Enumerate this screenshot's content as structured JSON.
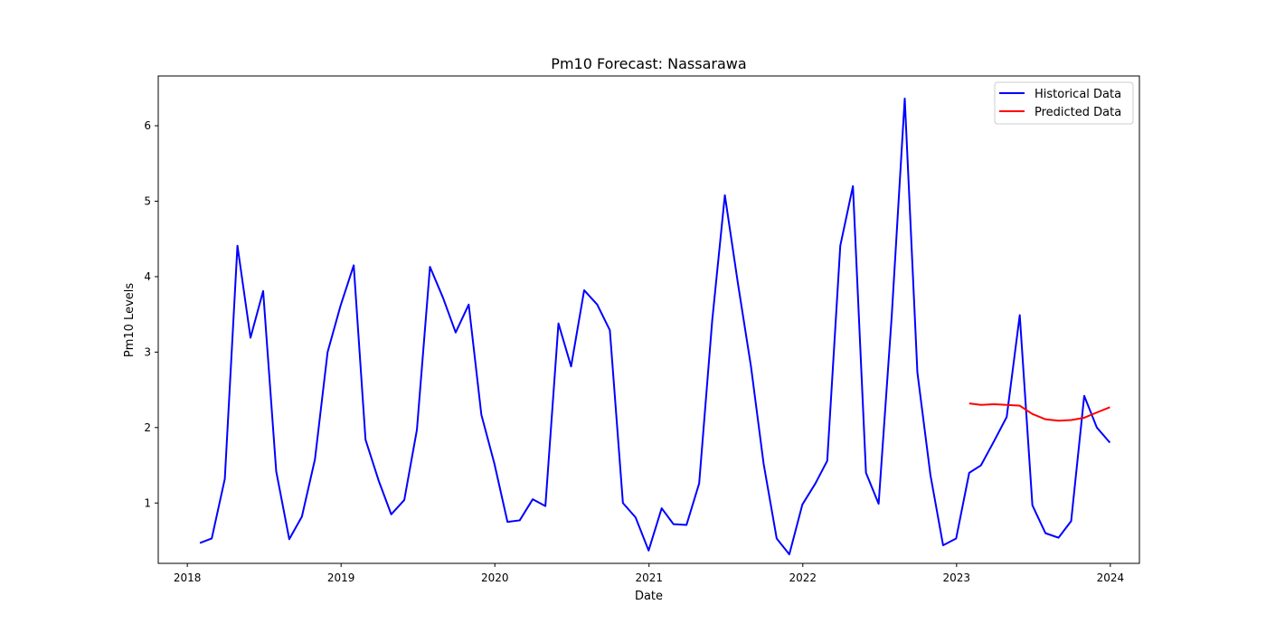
{
  "chart_data": {
    "type": "line",
    "title": "Pm10 Forecast: Nassarawa",
    "xlabel": "Date",
    "ylabel": "Pm10 Levels",
    "xlim": [
      "2017-10-24",
      "2024-03-10"
    ],
    "ylim": [
      0.2,
      6.66
    ],
    "x_ticks": [
      {
        "label": "2018",
        "date": "2018-01-01"
      },
      {
        "label": "2019",
        "date": "2019-01-01"
      },
      {
        "label": "2020",
        "date": "2020-01-01"
      },
      {
        "label": "2021",
        "date": "2021-01-01"
      },
      {
        "label": "2022",
        "date": "2022-01-01"
      },
      {
        "label": "2023",
        "date": "2023-01-01"
      },
      {
        "label": "2024",
        "date": "2024-01-01"
      }
    ],
    "y_ticks": [
      1,
      2,
      3,
      4,
      5,
      6
    ],
    "grid": false,
    "legend_position": "top-right",
    "series": [
      {
        "name": "Historical Data",
        "color": "#0000ff",
        "x": [
          "2018-01-31",
          "2018-02-28",
          "2018-03-31",
          "2018-04-30",
          "2018-05-31",
          "2018-06-30",
          "2018-07-31",
          "2018-08-31",
          "2018-09-30",
          "2018-10-31",
          "2018-11-30",
          "2018-12-31",
          "2019-01-31",
          "2019-02-28",
          "2019-03-31",
          "2019-04-30",
          "2019-05-31",
          "2019-06-30",
          "2019-07-31",
          "2019-08-31",
          "2019-09-30",
          "2019-10-31",
          "2019-11-30",
          "2019-12-31",
          "2020-01-31",
          "2020-02-29",
          "2020-03-31",
          "2020-04-30",
          "2020-05-31",
          "2020-06-30",
          "2020-07-31",
          "2020-08-31",
          "2020-09-30",
          "2020-10-31",
          "2020-11-30",
          "2020-12-31",
          "2021-01-31",
          "2021-02-28",
          "2021-03-31",
          "2021-04-30",
          "2021-05-31",
          "2021-06-30",
          "2021-07-31",
          "2021-08-31",
          "2021-09-30",
          "2021-10-31",
          "2021-11-30",
          "2021-12-31",
          "2022-01-31",
          "2022-02-28",
          "2022-03-31",
          "2022-04-30",
          "2022-05-31",
          "2022-06-30",
          "2022-07-31",
          "2022-08-31",
          "2022-09-30",
          "2022-10-31",
          "2022-11-30",
          "2022-12-31",
          "2023-01-31",
          "2023-02-28",
          "2023-03-31",
          "2023-04-30",
          "2023-05-31",
          "2023-06-30",
          "2023-07-31",
          "2023-08-31",
          "2023-09-30",
          "2023-10-31",
          "2023-11-30",
          "2023-12-31"
        ],
        "y": [
          0.47,
          0.53,
          1.32,
          4.41,
          3.19,
          3.81,
          1.42,
          0.52,
          0.82,
          1.58,
          3.0,
          3.62,
          4.15,
          1.84,
          1.3,
          0.85,
          1.04,
          1.97,
          4.13,
          3.72,
          3.26,
          3.63,
          2.17,
          1.52,
          0.75,
          0.77,
          1.05,
          0.96,
          3.38,
          2.81,
          3.82,
          3.63,
          3.29,
          1.0,
          0.81,
          0.37,
          0.93,
          0.72,
          0.71,
          1.26,
          3.42,
          5.08,
          3.91,
          2.81,
          1.52,
          0.53,
          0.32,
          0.98,
          1.26,
          1.56,
          4.41,
          5.2,
          1.4,
          0.99,
          3.47,
          6.36,
          2.73,
          1.37,
          0.44,
          0.53,
          1.4,
          1.5,
          1.82,
          2.14,
          3.49,
          0.97,
          0.6,
          0.54,
          0.76,
          2.42,
          2.0,
          1.8
        ]
      },
      {
        "name": "Predicted Data",
        "color": "#ff0000",
        "x": [
          "2023-01-31",
          "2023-02-28",
          "2023-03-31",
          "2023-04-30",
          "2023-05-31",
          "2023-06-30",
          "2023-07-31",
          "2023-08-31",
          "2023-09-30",
          "2023-10-31",
          "2023-11-30",
          "2023-12-31"
        ],
        "y": [
          2.32,
          2.3,
          2.31,
          2.3,
          2.29,
          2.18,
          2.11,
          2.09,
          2.1,
          2.13,
          2.2,
          2.27
        ]
      }
    ]
  }
}
